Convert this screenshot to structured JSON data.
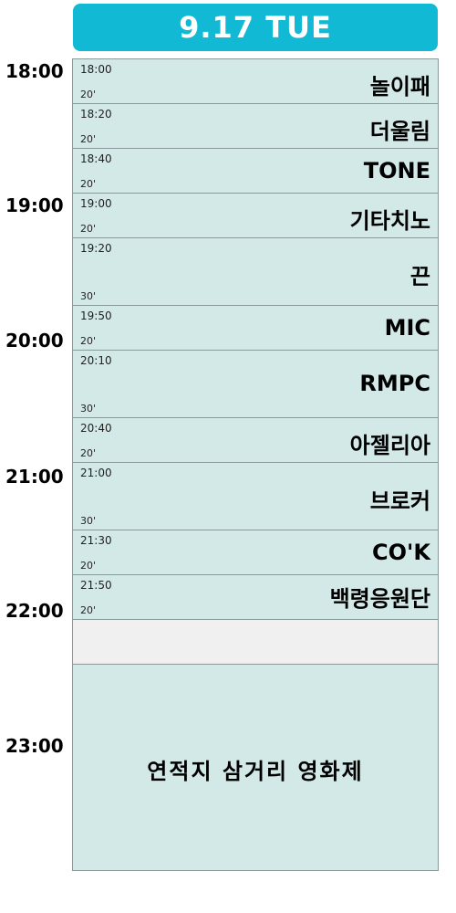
{
  "header": {
    "title": "9.17 TUE"
  },
  "hours": [
    "18:00",
    "19:00",
    "20:00",
    "21:00",
    "22:00",
    "23:00"
  ],
  "slots": [
    {
      "start": "18:00",
      "duration": "20'",
      "name": "놀이패"
    },
    {
      "start": "18:20",
      "duration": "20'",
      "name": "더울림"
    },
    {
      "start": "18:40",
      "duration": "20'",
      "name": "TONE"
    },
    {
      "start": "19:00",
      "duration": "20'",
      "name": "기타치노"
    },
    {
      "start": "19:20",
      "duration": "30'",
      "name": "끈"
    },
    {
      "start": "19:50",
      "duration": "20'",
      "name": "MIC"
    },
    {
      "start": "20:10",
      "duration": "30'",
      "name": "RMPC"
    },
    {
      "start": "20:40",
      "duration": "20'",
      "name": "아젤리아"
    },
    {
      "start": "21:00",
      "duration": "30'",
      "name": "브로커"
    },
    {
      "start": "21:30",
      "duration": "20'",
      "name": "CO'K"
    },
    {
      "start": "21:50",
      "duration": "20'",
      "name": "백령응원단"
    },
    {
      "start": "",
      "duration": "",
      "name": ""
    },
    {
      "start": "",
      "duration": "",
      "name": "연적지 삼거리 영화제"
    }
  ]
}
